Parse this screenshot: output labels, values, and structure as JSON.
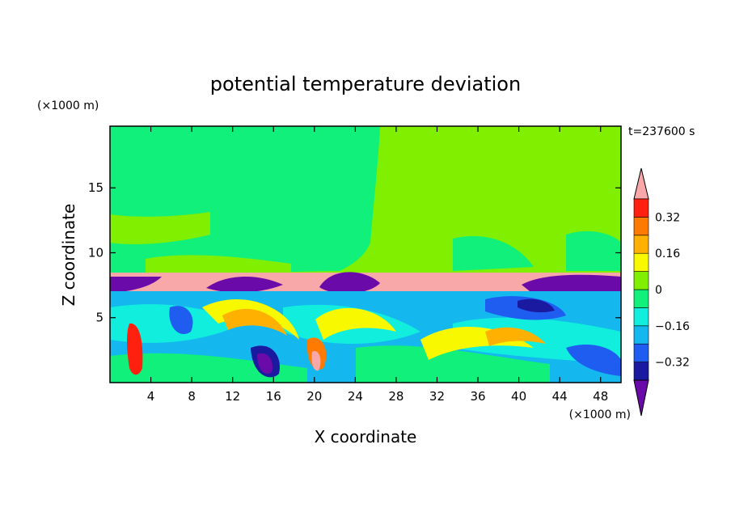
{
  "chart_data": {
    "type": "heatmap",
    "title": "potential temperature deviation",
    "xlabel": "X coordinate",
    "ylabel": "Z coordinate",
    "x_unit": "(×1000 m)",
    "y_unit": "(×1000 m)",
    "time_label": "t=237600 s",
    "xlim": [
      0,
      50
    ],
    "ylim": [
      0,
      19.75
    ],
    "x_ticks": [
      4,
      8,
      12,
      16,
      20,
      24,
      28,
      32,
      36,
      40,
      44,
      48
    ],
    "x_tick_labels": [
      "4",
      "8",
      "12",
      "16",
      "20",
      "24",
      "28",
      "32",
      "36",
      "40",
      "44",
      "48"
    ],
    "y_ticks": [
      5,
      10,
      15
    ],
    "y_tick_labels": [
      "5",
      "10",
      "15"
    ],
    "colorbar": {
      "levels": [
        -0.4,
        -0.32,
        -0.24,
        -0.16,
        -0.08,
        0,
        0.08,
        0.16,
        0.24,
        0.32,
        0.4
      ],
      "colors": [
        "#6a0aa8",
        "#1a1aa0",
        "#1f5cf0",
        "#14b8ee",
        "#12eedd",
        "#10f07a",
        "#80f000",
        "#f8f800",
        "#ffb000",
        "#ff7a00",
        "#ff2010",
        "#f8a8a8"
      ],
      "label_values": [
        0.32,
        0.16,
        0,
        -0.16,
        -0.32
      ],
      "labels": [
        "0.32",
        "0.16",
        "0",
        "−0.16",
        "−0.32"
      ],
      "extend": "both"
    },
    "grid": false,
    "legend_placement": "right"
  }
}
